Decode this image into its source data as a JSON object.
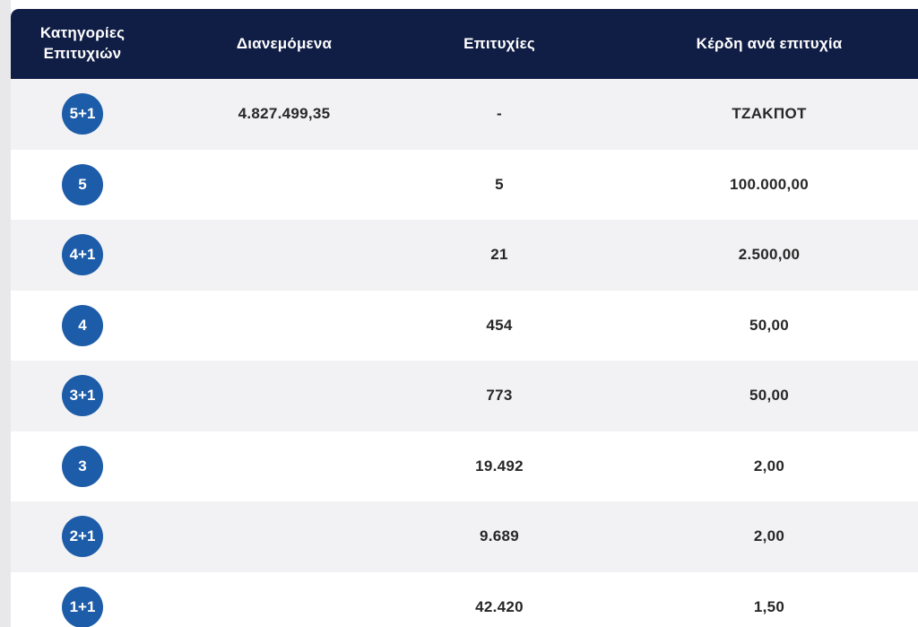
{
  "page": {
    "background_color": "#e8e8ea",
    "card_color": "#ffffff",
    "alt_row_color": "#f2f2f4",
    "header_color": "#101d45",
    "badge_color": "#1c5ca8"
  },
  "table": {
    "columns": {
      "categories": "Κατηγορίες Επιτυχιών",
      "distributed": "Διανεμόμενα",
      "winners": "Επιτυχίες",
      "prize_per_win": "Κέρδη ανά επιτυχία"
    },
    "rows": [
      {
        "category": "5+1",
        "distributed": "4.827.499,35",
        "winners": "-",
        "prize": "ΤΖΑΚΠΟΤ"
      },
      {
        "category": "5",
        "distributed": "",
        "winners": "5",
        "prize": "100.000,00"
      },
      {
        "category": "4+1",
        "distributed": "",
        "winners": "21",
        "prize": "2.500,00"
      },
      {
        "category": "4",
        "distributed": "",
        "winners": "454",
        "prize": "50,00"
      },
      {
        "category": "3+1",
        "distributed": "",
        "winners": "773",
        "prize": "50,00"
      },
      {
        "category": "3",
        "distributed": "",
        "winners": "19.492",
        "prize": "2,00"
      },
      {
        "category": "2+1",
        "distributed": "",
        "winners": "9.689",
        "prize": "2,00"
      },
      {
        "category": "1+1",
        "distributed": "",
        "winners": "42.420",
        "prize": "1,50"
      }
    ]
  }
}
